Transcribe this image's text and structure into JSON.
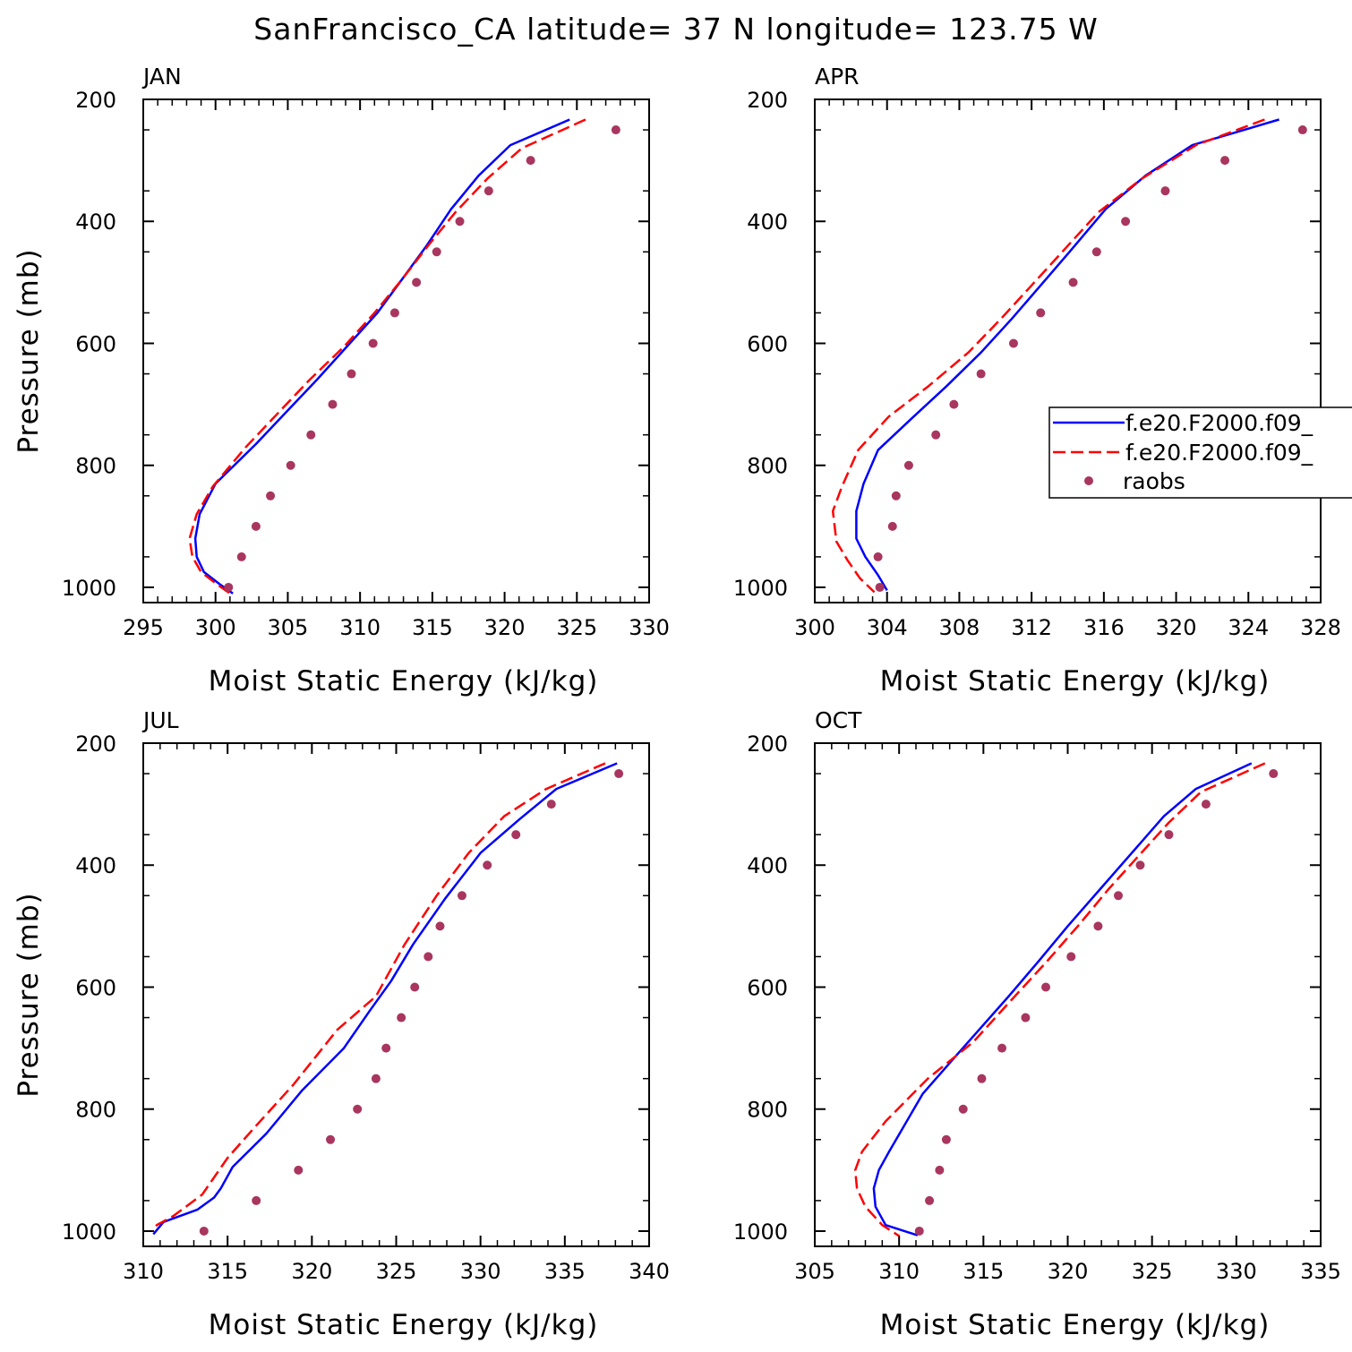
{
  "figure": {
    "title": "SanFrancisco_CA  latitude= 37 N longitude= 123.75 W"
  },
  "legend": {
    "entries": [
      {
        "label": "f.e20.F2000.f09_",
        "style": "solid",
        "color": "#0000ff"
      },
      {
        "label": "f.e20.F2000.f09_",
        "style": "dashed",
        "color": "#ff0000"
      },
      {
        "label": "raobs",
        "style": "dot",
        "color": "#a8365e"
      }
    ]
  },
  "chart_data": [
    {
      "type": "line",
      "title": "JAN",
      "xlabel": "Moist Static Energy (kJ/kg)",
      "ylabel": "Pressure (mb)",
      "xlim": [
        295,
        330
      ],
      "xticks": [
        295,
        300,
        305,
        310,
        315,
        320,
        325,
        330
      ],
      "ylim": [
        200,
        1025
      ],
      "yticks": [
        200,
        400,
        600,
        800,
        1000
      ],
      "series": [
        {
          "name": "f.e20.F2000.f09_",
          "style": "solid",
          "color": "#0000ff",
          "x": [
            324.5,
            320.4,
            318.2,
            316.3,
            314.6,
            312.9,
            311.2,
            309.1,
            307.0,
            305.0,
            302.8,
            300.0,
            298.9,
            298.6,
            298.7,
            299.2,
            300.3,
            301.2
          ],
          "y": [
            233,
            275,
            325,
            380,
            440,
            495,
            550,
            605,
            660,
            710,
            765,
            830,
            880,
            920,
            950,
            975,
            995,
            1010
          ]
        },
        {
          "name": "f.e20.F2000.f09_",
          "style": "dashed",
          "color": "#ff0000",
          "x": [
            325.6,
            321.2,
            318.8,
            316.6,
            314.7,
            312.9,
            311.0,
            308.9,
            306.5,
            304.3,
            302.1,
            299.8,
            298.7,
            298.2,
            298.4,
            299.0,
            300.1,
            301.0
          ],
          "y": [
            233,
            280,
            330,
            385,
            440,
            495,
            550,
            605,
            660,
            715,
            770,
            835,
            880,
            920,
            950,
            975,
            995,
            1010
          ]
        },
        {
          "name": "raobs",
          "style": "dot",
          "color": "#a8365e",
          "x": [
            327.7,
            321.8,
            318.9,
            316.9,
            315.3,
            313.9,
            312.4,
            310.9,
            309.4,
            308.1,
            306.6,
            305.2,
            303.8,
            302.8,
            301.8,
            300.9
          ],
          "y": [
            250,
            300,
            350,
            400,
            450,
            500,
            550,
            600,
            650,
            700,
            750,
            800,
            850,
            900,
            950,
            1000
          ]
        }
      ]
    },
    {
      "type": "line",
      "title": "APR",
      "xlabel": "Moist Static Energy (kJ/kg)",
      "ylabel": "",
      "xlim": [
        300,
        328
      ],
      "xticks": [
        300,
        304,
        308,
        312,
        316,
        320,
        324,
        328
      ],
      "ylim": [
        200,
        1025
      ],
      "yticks": [
        200,
        400,
        600,
        800,
        1000
      ],
      "series": [
        {
          "name": "f.e20.F2000.f09_",
          "style": "solid",
          "color": "#0000ff",
          "x": [
            325.7,
            320.9,
            318.3,
            316.1,
            314.1,
            312.5,
            310.9,
            309.2,
            307.3,
            305.3,
            303.5,
            302.7,
            302.3,
            302.3,
            302.8,
            303.5,
            304.0
          ],
          "y": [
            233,
            275,
            325,
            380,
            450,
            505,
            560,
            615,
            670,
            725,
            775,
            830,
            875,
            920,
            950,
            980,
            1005
          ]
        },
        {
          "name": "f.e20.F2000.f09_",
          "style": "dashed",
          "color": "#ff0000",
          "x": [
            324.9,
            321.1,
            318.1,
            315.7,
            313.7,
            312.0,
            310.3,
            308.5,
            306.3,
            304.1,
            302.4,
            301.5,
            301.0,
            301.2,
            301.8,
            302.5,
            303.3
          ],
          "y": [
            233,
            275,
            330,
            385,
            450,
            505,
            560,
            615,
            670,
            720,
            775,
            835,
            875,
            925,
            955,
            985,
            1008
          ]
        },
        {
          "name": "raobs",
          "style": "dot",
          "color": "#a8365e",
          "x": [
            327.0,
            322.7,
            319.4,
            317.2,
            315.6,
            314.3,
            312.5,
            311.0,
            309.2,
            307.7,
            306.7,
            305.2,
            304.5,
            304.3,
            303.5,
            303.6
          ],
          "y": [
            250,
            300,
            350,
            400,
            450,
            500,
            550,
            600,
            650,
            700,
            750,
            800,
            850,
            900,
            950,
            1000
          ]
        }
      ]
    },
    {
      "type": "line",
      "title": "JUL",
      "xlabel": "Moist Static Energy (kJ/kg)",
      "ylabel": "Pressure (mb)",
      "xlim": [
        310,
        340
      ],
      "xticks": [
        310,
        315,
        320,
        325,
        330,
        335,
        340
      ],
      "ylim": [
        200,
        1025
      ],
      "yticks": [
        200,
        400,
        600,
        800,
        1000
      ],
      "series": [
        {
          "name": "f.e20.F2000.f09_",
          "style": "solid",
          "color": "#0000ff",
          "x": [
            338.1,
            334.5,
            332.3,
            330.0,
            327.9,
            326.0,
            324.7,
            323.4,
            321.9,
            319.4,
            317.3,
            315.3,
            314.6,
            314.2,
            313.2,
            311.2,
            310.6
          ],
          "y": [
            233,
            275,
            325,
            380,
            455,
            530,
            590,
            640,
            700,
            770,
            840,
            895,
            930,
            945,
            965,
            985,
            1005
          ]
        },
        {
          "name": "f.e20.F2000.f09_",
          "style": "dashed",
          "color": "#ff0000",
          "x": [
            337.4,
            333.9,
            331.4,
            329.3,
            327.4,
            325.5,
            323.8,
            321.5,
            318.9,
            316.6,
            315.0,
            313.5,
            311.8,
            310.8,
            310.6
          ],
          "y": [
            233,
            275,
            320,
            380,
            450,
            530,
            615,
            670,
            760,
            830,
            880,
            940,
            975,
            990,
            1000
          ]
        },
        {
          "name": "raobs",
          "style": "dot",
          "color": "#a8365e",
          "x": [
            338.2,
            334.2,
            332.1,
            330.4,
            328.9,
            327.6,
            326.9,
            326.1,
            325.3,
            324.4,
            323.8,
            322.7,
            321.1,
            319.2,
            316.7,
            313.6
          ],
          "y": [
            250,
            300,
            350,
            400,
            450,
            500,
            550,
            600,
            650,
            700,
            750,
            800,
            850,
            900,
            950,
            1000
          ]
        }
      ]
    },
    {
      "type": "line",
      "title": "OCT",
      "xlabel": "Moist Static Energy (kJ/kg)",
      "ylabel": "",
      "xlim": [
        305,
        335
      ],
      "xticks": [
        305,
        310,
        315,
        320,
        325,
        330,
        335
      ],
      "ylim": [
        200,
        1025
      ],
      "yticks": [
        200,
        400,
        600,
        800,
        1000
      ],
      "series": [
        {
          "name": "f.e20.F2000.f09_",
          "style": "solid",
          "color": "#0000ff",
          "x": [
            330.9,
            327.6,
            325.7,
            323.8,
            321.9,
            320.0,
            318.2,
            316.5,
            314.9,
            313.3,
            311.4,
            309.4,
            308.8,
            308.5,
            308.6,
            309.2,
            311.1
          ],
          "y": [
            233,
            275,
            320,
            380,
            440,
            500,
            560,
            615,
            665,
            715,
            775,
            870,
            900,
            930,
            960,
            990,
            1007
          ]
        },
        {
          "name": "f.e20.F2000.f09_",
          "style": "dashed",
          "color": "#ff0000",
          "x": [
            331.7,
            327.9,
            326.0,
            324.2,
            322.4,
            320.6,
            318.7,
            316.7,
            314.4,
            311.7,
            309.2,
            307.8,
            307.4,
            307.5,
            308.0,
            309.0,
            310.0
          ],
          "y": [
            233,
            280,
            330,
            385,
            440,
            500,
            560,
            620,
            690,
            750,
            820,
            870,
            900,
            930,
            960,
            990,
            1008
          ]
        },
        {
          "name": "raobs",
          "style": "dot",
          "color": "#a8365e",
          "x": [
            332.2,
            328.2,
            326.0,
            324.3,
            323.0,
            321.8,
            320.2,
            318.7,
            317.5,
            316.1,
            314.9,
            313.8,
            312.8,
            312.4,
            311.8,
            311.2
          ],
          "y": [
            250,
            300,
            350,
            400,
            450,
            500,
            550,
            600,
            650,
            700,
            750,
            800,
            850,
            900,
            950,
            1000
          ]
        }
      ]
    }
  ]
}
